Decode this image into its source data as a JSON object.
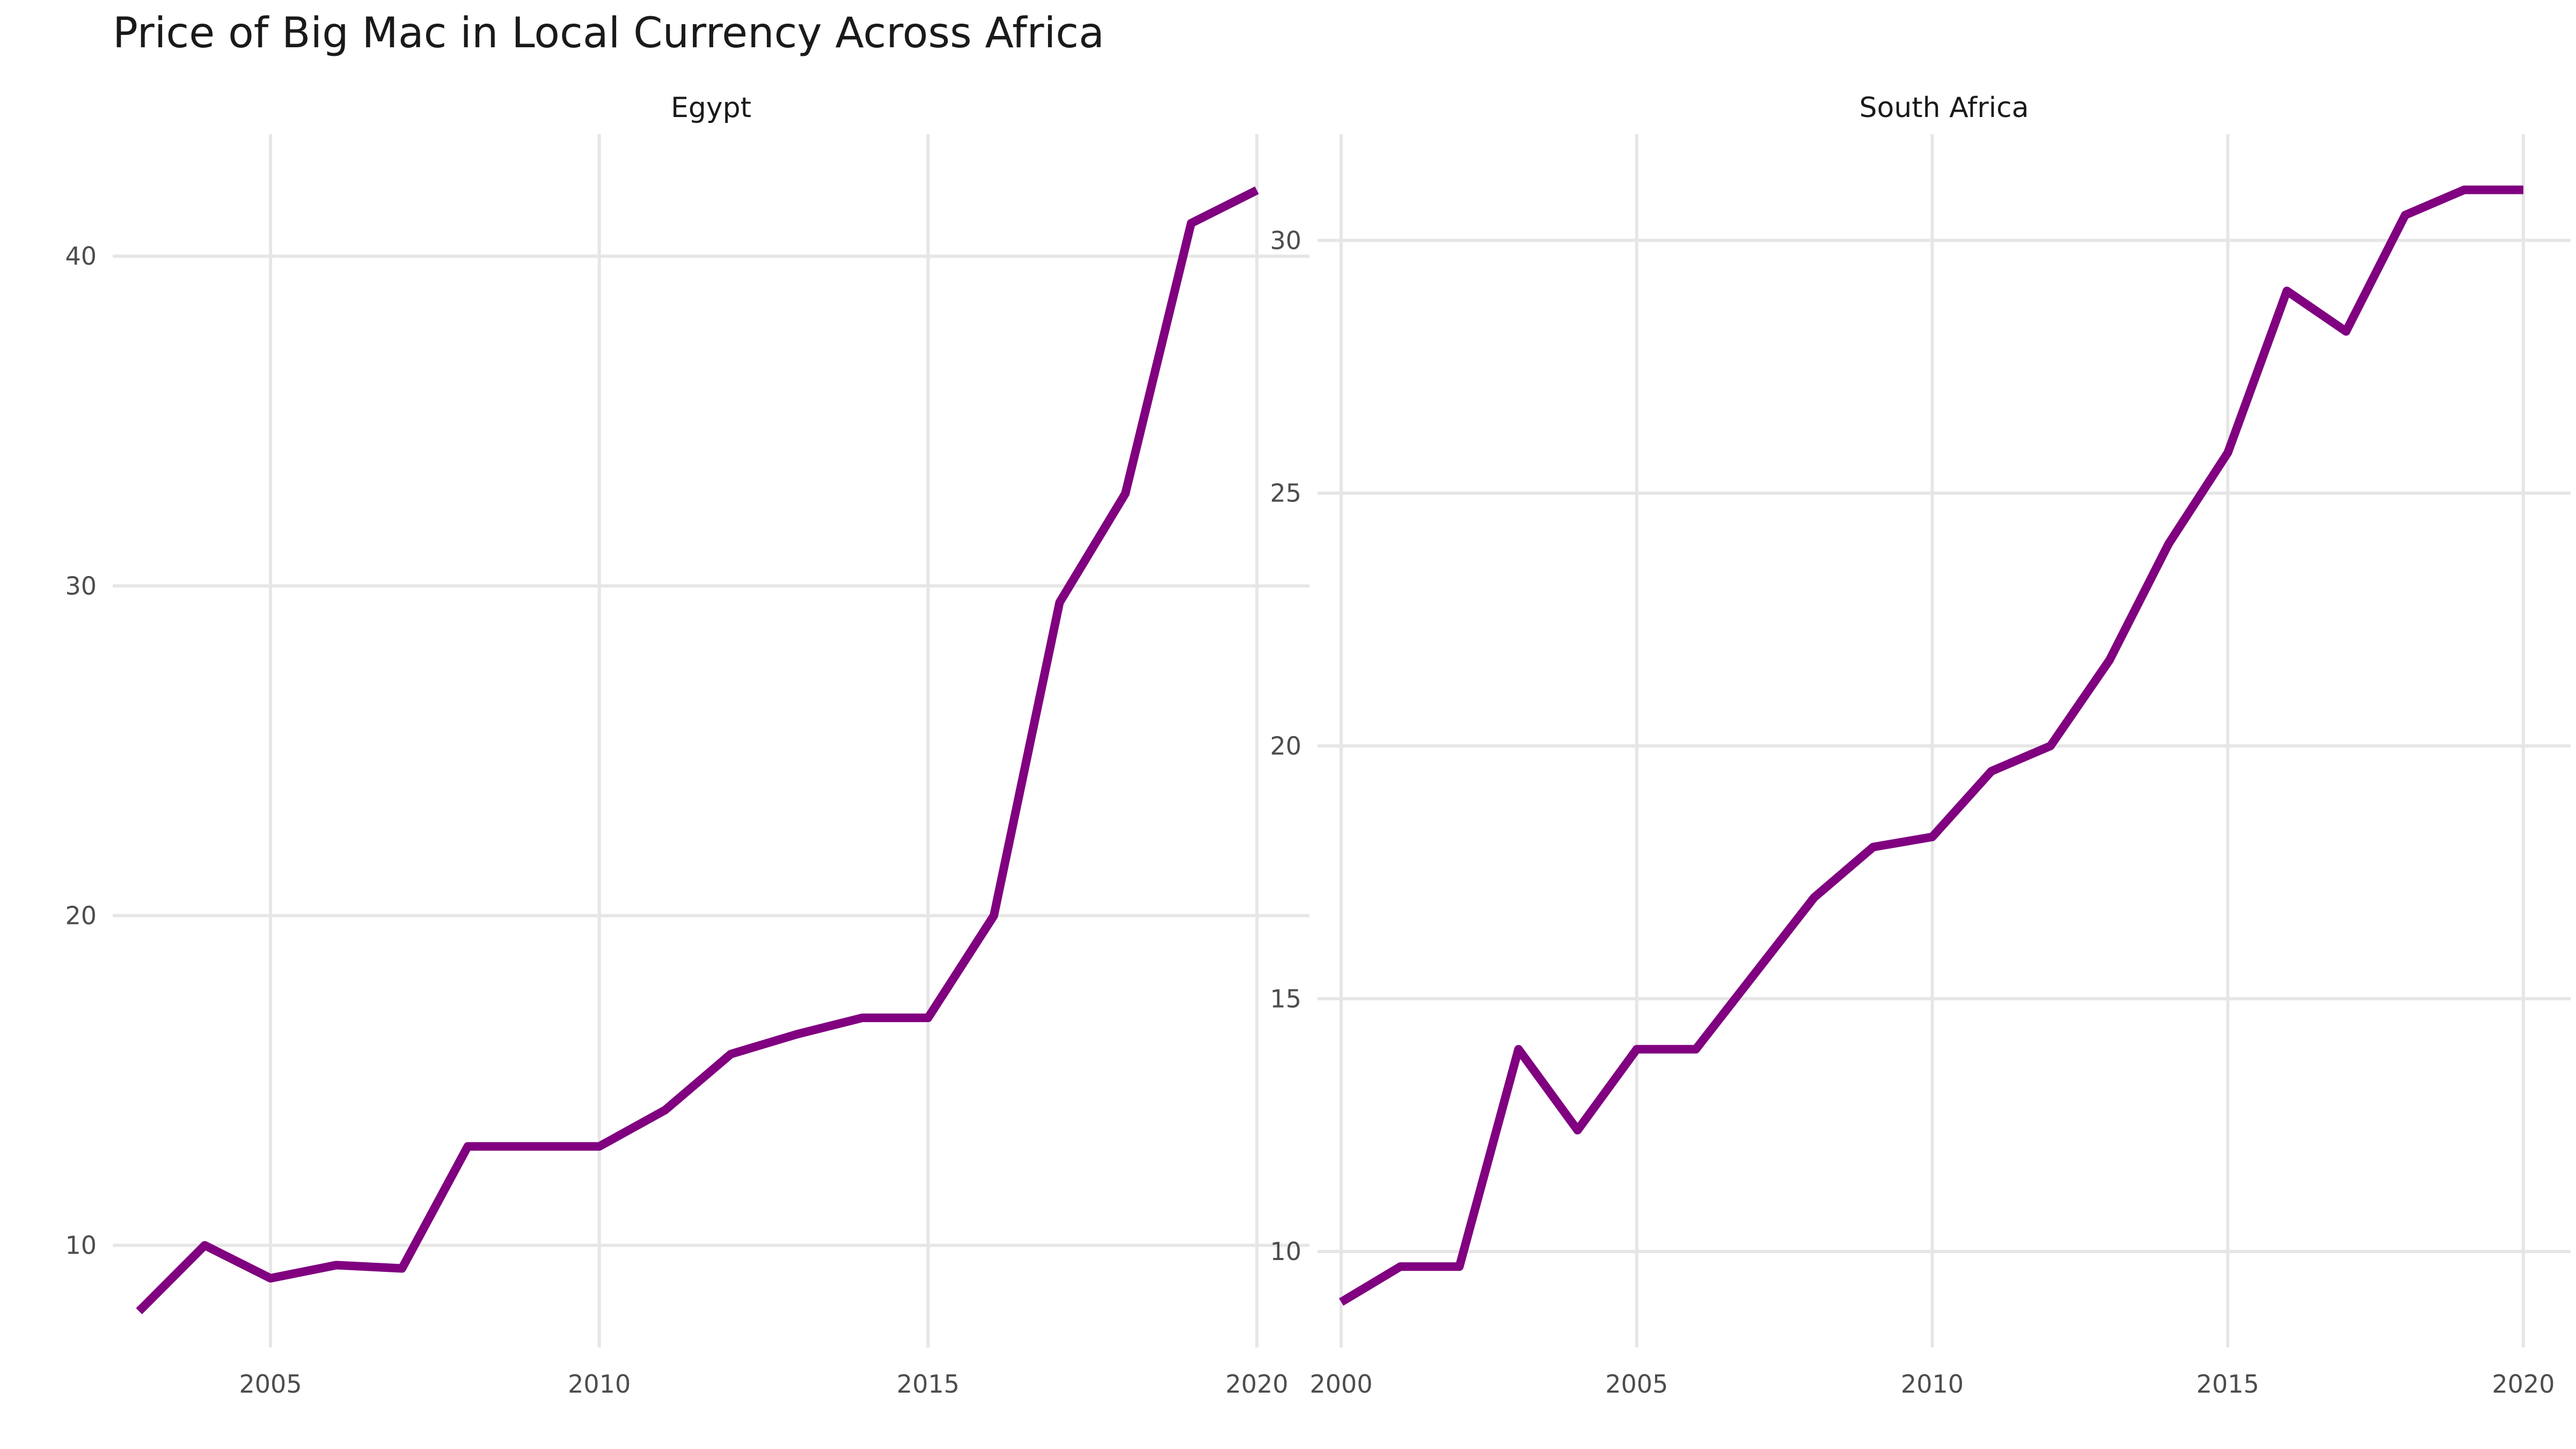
{
  "chart_data": {
    "type": "line",
    "title": "Price of Big Mac in Local Currency Across Africa",
    "xlabel": "",
    "ylabel": "",
    "grid": true,
    "legend": "none",
    "line_color": "#800080",
    "grid_color": "#e6e6e6",
    "panels": [
      {
        "name": "Egypt",
        "x_ticks": [
          2005,
          2010,
          2015,
          2020
        ],
        "y_ticks": [
          10,
          20,
          30,
          40
        ],
        "xlim": [
          2002.6,
          2020.8
        ],
        "ylim": [
          6.9,
          43.7
        ],
        "series": [
          {
            "x": [
              2003,
              2004,
              2005,
              2006,
              2007,
              2008,
              2009,
              2010,
              2011,
              2012,
              2013,
              2014,
              2015,
              2016,
              2017,
              2018,
              2019,
              2020
            ],
            "y": [
              8.0,
              10.0,
              9.0,
              9.4,
              9.3,
              13.0,
              13.0,
              13.0,
              14.1,
              15.8,
              16.4,
              16.9,
              16.9,
              20.0,
              29.5,
              32.8,
              41.0,
              42.0
            ]
          }
        ]
      },
      {
        "name": "South Africa",
        "x_ticks": [
          2000,
          2005,
          2010,
          2015,
          2020
        ],
        "y_ticks": [
          10,
          15,
          20,
          25,
          30
        ],
        "xlim": [
          1999.6,
          2020.8
        ],
        "ylim": [
          8.1,
          32.1
        ],
        "series": [
          {
            "x": [
              2000,
              2001,
              2002,
              2003,
              2004,
              2005,
              2006,
              2007,
              2008,
              2009,
              2010,
              2011,
              2012,
              2013,
              2014,
              2015,
              2016,
              2017,
              2018,
              2019,
              2020
            ],
            "y": [
              9.0,
              9.7,
              9.7,
              14.0,
              12.4,
              14.0,
              14.0,
              15.5,
              17.0,
              18.0,
              18.2,
              19.5,
              20.0,
              21.7,
              24.0,
              25.8,
              29.0,
              28.2,
              30.5,
              31.0,
              31.0
            ]
          }
        ]
      }
    ]
  }
}
